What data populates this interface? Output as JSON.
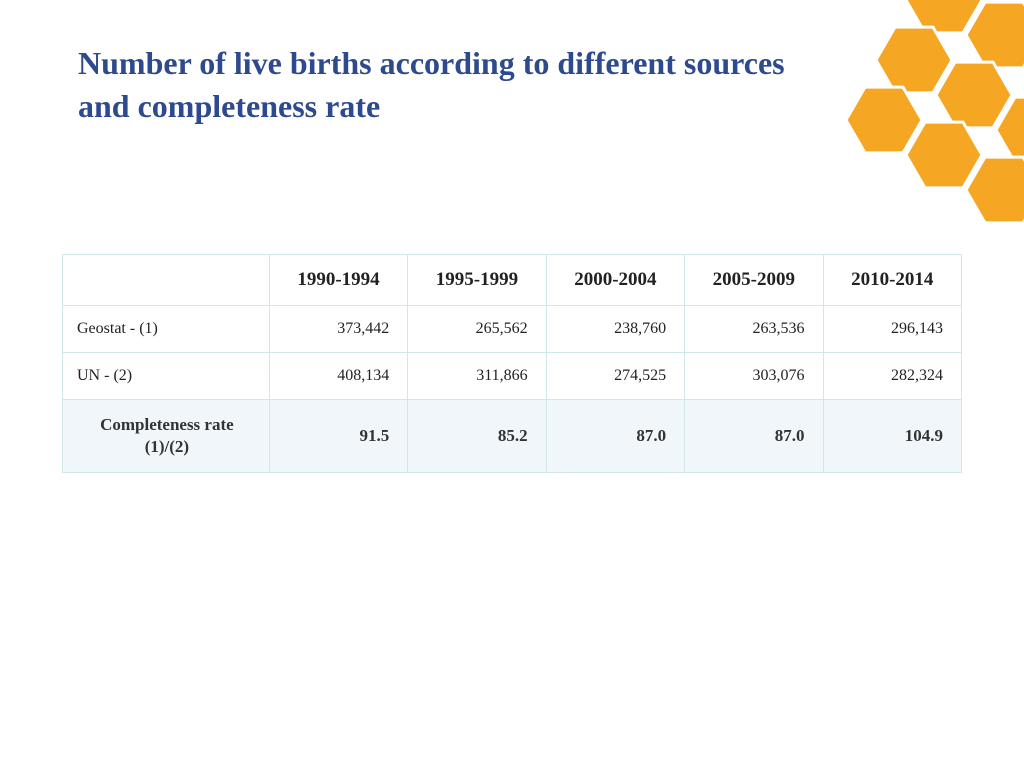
{
  "title": "Number of live births according to different sources and completeness rate",
  "decoration": {
    "hex_fill": "#f5a623",
    "hex_stroke": "#ffffff",
    "hex_stroke_width": 3
  },
  "table": {
    "columns": [
      "1990-1994",
      "1995-1999",
      "2000-2004",
      "2005-2009",
      "2010-2014"
    ],
    "rows": [
      {
        "label": "Geostat - (1)",
        "values": [
          "373,442",
          "265,562",
          "238,760",
          "263,536",
          "296,143"
        ],
        "highlight": false
      },
      {
        "label": "UN - (2)",
        "values": [
          "408,134",
          "311,866",
          "274,525",
          "303,076",
          "282,324"
        ],
        "highlight": false
      },
      {
        "label": "Completeness rate (1)/(2)",
        "values": [
          "91.5",
          "85.2",
          "87.0",
          "87.0",
          "104.9"
        ],
        "highlight": true
      }
    ],
    "border_color": "#cfe8e8",
    "highlight_bg": "#f0f6f9",
    "header_fontsize": 19,
    "cell_fontsize": 16
  },
  "colors": {
    "title": "#2e4a8f",
    "text": "#222222",
    "background": "#ffffff"
  }
}
